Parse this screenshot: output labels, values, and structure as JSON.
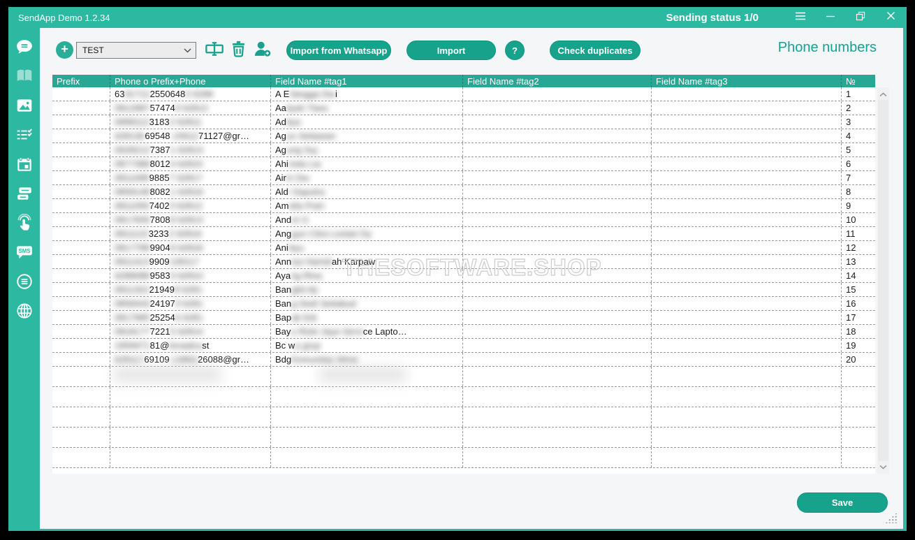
{
  "window": {
    "title": "SendApp Demo 1.2.34",
    "status": "Sending status 1/0"
  },
  "toolbar": {
    "add_label": "+",
    "list_value": "TEST",
    "import_whatsapp_label": "Import from Whatsapp",
    "import_label": "Import",
    "help_label": "?",
    "check_duplicates_label": "Check duplicates",
    "page_title": "Phone numbers"
  },
  "sidebar": {
    "sms_label": "SMS",
    "icons": [
      "chat-lines",
      "book",
      "image",
      "checklist",
      "calendar",
      "chat-double",
      "touch-click",
      "sms",
      "circle-list",
      "globe"
    ]
  },
  "table": {
    "headers": [
      "Prefix",
      "Phone o Prefix+Phone",
      "Field Name #tag1",
      "Field Name #tag2",
      "Field Name #tag3",
      "№"
    ],
    "rows": [
      {
        "num": "1",
        "prefix": "",
        "tag2": "",
        "tag3": "",
        "phone": [
          {
            "t": "63",
            "b": 0
          },
          {
            "t": "91712",
            "b": 1
          },
          {
            "t": "2550648",
            "b": 0
          },
          {
            "t": "0 6298",
            "b": 1
          }
        ],
        "name": [
          {
            "t": "A E",
            "b": 0
          },
          {
            "t": "rlangga Dw",
            "b": 1
          },
          {
            "t": "i",
            "b": 0
          }
        ]
      },
      {
        "num": "2",
        "prefix": "",
        "tag2": "",
        "tag3": "",
        "phone": [
          {
            "t": "0812987",
            "b": 1
          },
          {
            "t": "57474",
            "b": 0
          },
          {
            "t": "9 62812",
            "b": 1
          }
        ],
        "name": [
          {
            "t": "Aa",
            "b": 0
          },
          {
            "t": "liyah Tiara",
            "b": 1
          }
        ]
      },
      {
        "num": "3",
        "prefix": "",
        "tag2": "",
        "tag3": "",
        "phone": [
          {
            "t": "0898112",
            "b": 1
          },
          {
            "t": "3183",
            "b": 0
          },
          {
            "t": "2 62811",
            "b": 1
          }
        ],
        "name": [
          {
            "t": "Ad",
            "b": 0
          },
          {
            "t": "itya",
            "b": 1
          }
        ]
      },
      {
        "num": "4",
        "prefix": "",
        "tag2": "",
        "tag3": "",
        "phone": [
          {
            "t": "628136",
            "b": 1
          },
          {
            "t": "69548",
            "b": 0
          },
          {
            "t": "-15612",
            "b": 1
          },
          {
            "t": "71127@gr…",
            "b": 0
          }
        ],
        "name": [
          {
            "t": "Ag",
            "b": 0
          },
          {
            "t": "us Setiawan",
            "b": 1
          }
        ]
      },
      {
        "num": "5",
        "prefix": "",
        "tag2": "",
        "tag3": "",
        "phone": [
          {
            "t": "0628212",
            "b": 1
          },
          {
            "t": "7387",
            "b": 0
          },
          {
            "t": "1 62813",
            "b": 1
          }
        ],
        "name": [
          {
            "t": "Ag",
            "b": 0
          },
          {
            "t": "ung Suj",
            "b": 1
          }
        ]
      },
      {
        "num": "6",
        "prefix": "",
        "tag2": "",
        "tag3": "",
        "phone": [
          {
            "t": "0877388",
            "b": 1
          },
          {
            "t": "8012",
            "b": 0
          },
          {
            "t": "4 62815",
            "b": 1
          }
        ],
        "name": [
          {
            "t": "Ahi",
            "b": 0
          },
          {
            "t": "mda Lia",
            "b": 1
          }
        ]
      },
      {
        "num": "7",
        "prefix": "",
        "tag2": "",
        "tag3": "",
        "phone": [
          {
            "t": "0811098",
            "b": 1
          },
          {
            "t": "9885",
            "b": 0
          },
          {
            "t": "7 62817",
            "b": 1
          }
        ],
        "name": [
          {
            "t": "Air",
            "b": 0
          },
          {
            "t": "in Dw",
            "b": 1
          }
        ]
      },
      {
        "num": "8",
        "prefix": "",
        "tag2": "",
        "tag3": "",
        "phone": [
          {
            "t": "0858148",
            "b": 1
          },
          {
            "t": "8082",
            "b": 0
          },
          {
            "t": "1 62819",
            "b": 1
          }
        ],
        "name": [
          {
            "t": "Ald",
            "b": 0
          },
          {
            "t": "i Saputra",
            "b": 1
          }
        ]
      },
      {
        "num": "9",
        "prefix": "",
        "tag2": "",
        "tag3": "",
        "phone": [
          {
            "t": "0811056",
            "b": 1
          },
          {
            "t": "7402",
            "b": 0
          },
          {
            "t": "3 62812",
            "b": 1
          }
        ],
        "name": [
          {
            "t": "Am",
            "b": 0
          },
          {
            "t": "elia Putri",
            "b": 1
          }
        ]
      },
      {
        "num": "10",
        "prefix": "",
        "tag2": "",
        "tag3": "",
        "phone": [
          {
            "t": "0817656",
            "b": 1
          },
          {
            "t": "7808",
            "b": 0
          },
          {
            "t": "8 62813",
            "b": 1
          }
        ],
        "name": [
          {
            "t": "And",
            "b": 0
          },
          {
            "t": "re S",
            "b": 1
          }
        ]
      },
      {
        "num": "11",
        "prefix": "",
        "tag2": "",
        "tag3": "",
        "phone": [
          {
            "t": "0811122",
            "b": 1
          },
          {
            "t": "3233",
            "b": 0
          },
          {
            "t": "2 62816",
            "b": 1
          }
        ],
        "name": [
          {
            "t": "Ang",
            "b": 0
          },
          {
            "t": "gun Citra Lestari Dy",
            "b": 1
          }
        ]
      },
      {
        "num": "12",
        "prefix": "",
        "tag2": "",
        "tag3": "",
        "phone": [
          {
            "t": "0817788",
            "b": 1
          },
          {
            "t": "9904",
            "b": 0
          },
          {
            "t": "8 62818",
            "b": 1
          }
        ],
        "name": [
          {
            "t": "Ani",
            "b": 0
          },
          {
            "t": " Ayu",
            "b": 1
          }
        ]
      },
      {
        "num": "13",
        "prefix": "",
        "tag2": "",
        "tag3": "",
        "phone": [
          {
            "t": "0811413",
            "b": 1
          },
          {
            "t": "9909",
            "b": 0
          },
          {
            "t": " 139117",
            "b": 1
          }
        ],
        "name": [
          {
            "t": "Ann",
            "b": 0
          },
          {
            "t": "isa Hamid",
            "b": 1
          },
          {
            "t": "ah Karpaw",
            "b": 0
          }
        ]
      },
      {
        "num": "14",
        "prefix": "",
        "tag2": "",
        "tag3": "",
        "phone": [
          {
            "t": "6288088",
            "b": 1
          },
          {
            "t": "9583",
            "b": 0
          },
          {
            "t": "3 62810",
            "b": 1
          }
        ],
        "name": [
          {
            "t": "Aya",
            "b": 0
          },
          {
            "t": "ng Rina",
            "b": 1
          }
        ]
      },
      {
        "num": "15",
        "prefix": "",
        "tag2": "",
        "tag3": "",
        "phone": [
          {
            "t": "0811322",
            "b": 1
          },
          {
            "t": "21949",
            "b": 0
          },
          {
            "t": "8 6281",
            "b": 1
          }
        ],
        "name": [
          {
            "t": "Ban",
            "b": 0
          },
          {
            "t": "gkit Aji",
            "b": 1
          }
        ]
      },
      {
        "num": "16",
        "prefix": "",
        "tag2": "",
        "tag3": "",
        "phone": [
          {
            "t": "0858443",
            "b": 1
          },
          {
            "t": "24197",
            "b": 0
          },
          {
            "t": "3 6281",
            "b": 1
          }
        ],
        "name": [
          {
            "t": "Ban",
            "b": 0
          },
          {
            "t": "g Dedi Setiabud",
            "b": 1
          }
        ]
      },
      {
        "num": "17",
        "prefix": "",
        "tag2": "",
        "tag3": "",
        "phone": [
          {
            "t": "0817985",
            "b": 1
          },
          {
            "t": "25254",
            "b": 0
          },
          {
            "t": "6 6281",
            "b": 1
          }
        ],
        "name": [
          {
            "t": "Bap",
            "b": 0
          },
          {
            "t": "ak Edi",
            "b": 1
          }
        ]
      },
      {
        "num": "18",
        "prefix": "",
        "tag2": "",
        "tag3": "",
        "phone": [
          {
            "t": "0818177",
            "b": 1
          },
          {
            "t": "7221",
            "b": 0
          },
          {
            "t": "5 62814",
            "b": 1
          }
        ],
        "name": [
          {
            "t": "Bay",
            "b": 0
          },
          {
            "t": "u Rizki Jaya Servi",
            "b": 1
          },
          {
            "t": "ce Lapto…",
            "b": 0
          }
        ]
      },
      {
        "num": "19",
        "prefix": "",
        "tag2": "",
        "tag3": "",
        "phone": [
          {
            "t": "1959471",
            "b": 1
          },
          {
            "t": "81@",
            "b": 0
          },
          {
            "t": "broadca",
            "b": 1
          },
          {
            "t": "st",
            "b": 0
          }
        ],
        "name": [
          {
            "t": "Bc w",
            "b": 0
          },
          {
            "t": "a grup",
            "b": 1
          }
        ]
      },
      {
        "num": "20",
        "prefix": "",
        "tag2": "",
        "tag3": "",
        "phone": [
          {
            "t": "628117",
            "b": 1
          },
          {
            "t": "69109",
            "b": 0
          },
          {
            "t": "-13862",
            "b": 1
          },
          {
            "t": "26088@gr…",
            "b": 0
          }
        ],
        "name": [
          {
            "t": "Bdg",
            "b": 0
          },
          {
            "t": " Komunitas Wiral",
            "b": 1
          }
        ]
      }
    ]
  },
  "watermark": "THESOFTWARE.SHOP",
  "footer": {
    "save_label": "Save"
  },
  "colors": {
    "accent": "#2db8a1",
    "button": "#17a28c",
    "table_header": "#28a795",
    "page_title_text": "#14a392",
    "content_bg": "#f5f6f8"
  }
}
